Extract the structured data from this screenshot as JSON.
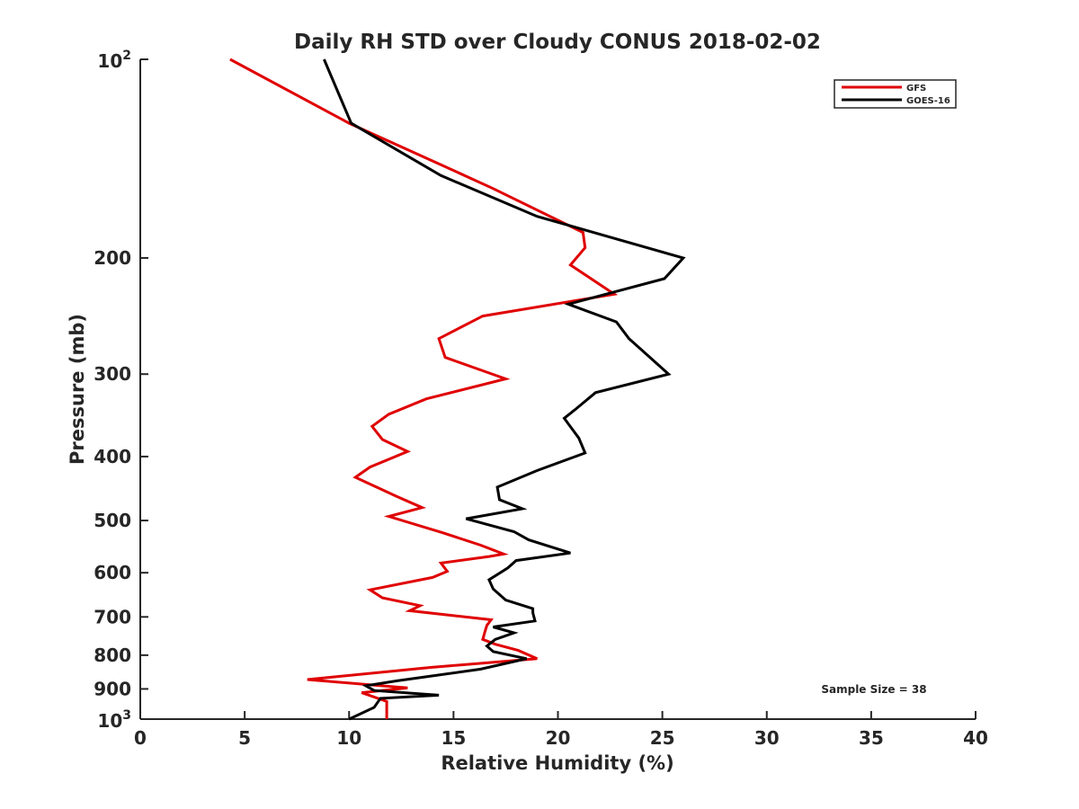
{
  "chart_data": {
    "type": "line",
    "title": "Daily RH STD over Cloudy CONUS 2018-02-02",
    "xlabel": "Relative Humidity (%)",
    "ylabel": "Pressure (mb)",
    "xlim": [
      0,
      40
    ],
    "ylim": [
      100,
      1000
    ],
    "y_scale": "log",
    "y_reversed": true,
    "grid": false,
    "legend_position": "top-right",
    "x_ticks": [
      0,
      5,
      10,
      15,
      20,
      25,
      30,
      35,
      40
    ],
    "x_tick_labels": [
      "0",
      "5",
      "10",
      "15",
      "20",
      "25",
      "30",
      "35",
      "40"
    ],
    "y_ticks": [
      {
        "value": 100,
        "base": "10",
        "exp": "2"
      },
      {
        "value": 200,
        "label": "200"
      },
      {
        "value": 300,
        "label": "300"
      },
      {
        "value": 400,
        "label": "400"
      },
      {
        "value": 500,
        "label": "500"
      },
      {
        "value": 600,
        "label": "600"
      },
      {
        "value": 700,
        "label": "700"
      },
      {
        "value": 800,
        "label": "800"
      },
      {
        "value": 900,
        "label": "900"
      },
      {
        "value": 1000,
        "base": "10",
        "exp": "3"
      }
    ],
    "annotation": "Sample Size = 38",
    "series": [
      {
        "name": "GFS",
        "color": "#e00000",
        "points": [
          [
            4.3,
            100
          ],
          [
            10.0,
            125
          ],
          [
            14.5,
            145
          ],
          [
            16.9,
            157
          ],
          [
            21.2,
            183
          ],
          [
            21.3,
            193
          ],
          [
            20.6,
            205
          ],
          [
            22.7,
            227
          ],
          [
            16.4,
            245
          ],
          [
            14.3,
            265
          ],
          [
            14.6,
            283
          ],
          [
            17.5,
            305
          ],
          [
            13.7,
            327
          ],
          [
            11.9,
            345
          ],
          [
            11.1,
            360
          ],
          [
            11.6,
            377
          ],
          [
            12.8,
            393
          ],
          [
            11.0,
            415
          ],
          [
            10.3,
            430
          ],
          [
            12.3,
            460
          ],
          [
            13.5,
            478
          ],
          [
            11.9,
            493
          ],
          [
            14.5,
            522
          ],
          [
            16.3,
            545
          ],
          [
            17.4,
            562
          ],
          [
            16.7,
            567
          ],
          [
            14.4,
            580
          ],
          [
            14.7,
            597
          ],
          [
            14.0,
            610
          ],
          [
            11.0,
            637
          ],
          [
            11.6,
            655
          ],
          [
            13.4,
            673
          ],
          [
            12.9,
            685
          ],
          [
            16.8,
            707
          ],
          [
            16.6,
            721
          ],
          [
            16.5,
            738
          ],
          [
            16.4,
            757
          ],
          [
            17.0,
            770
          ],
          [
            18.1,
            787
          ],
          [
            19.0,
            810
          ],
          [
            13.9,
            835
          ],
          [
            8.0,
            871
          ],
          [
            12.8,
            897
          ],
          [
            10.6,
            912
          ],
          [
            11.8,
            940
          ],
          [
            11.8,
            1000
          ]
        ]
      },
      {
        "name": "GOES-16",
        "color": "#000000",
        "points": [
          [
            8.8,
            100
          ],
          [
            10.1,
            125
          ],
          [
            14.4,
            150
          ],
          [
            19.0,
            173
          ],
          [
            26.0,
            200
          ],
          [
            25.1,
            215
          ],
          [
            20.5,
            235
          ],
          [
            22.8,
            250
          ],
          [
            23.4,
            265
          ],
          [
            25.3,
            300
          ],
          [
            21.8,
            320
          ],
          [
            20.8,
            340
          ],
          [
            20.3,
            350
          ],
          [
            21.0,
            375
          ],
          [
            21.3,
            395
          ],
          [
            19.0,
            420
          ],
          [
            17.1,
            445
          ],
          [
            17.2,
            465
          ],
          [
            18.3,
            480
          ],
          [
            15.6,
            497
          ],
          [
            17.9,
            520
          ],
          [
            18.6,
            535
          ],
          [
            20.6,
            560
          ],
          [
            18.0,
            575
          ],
          [
            17.6,
            590
          ],
          [
            16.7,
            615
          ],
          [
            16.9,
            635
          ],
          [
            17.5,
            660
          ],
          [
            18.8,
            680
          ],
          [
            18.8,
            690
          ],
          [
            18.9,
            710
          ],
          [
            16.9,
            725
          ],
          [
            17.9,
            740
          ],
          [
            17.0,
            757
          ],
          [
            16.6,
            775
          ],
          [
            16.9,
            790
          ],
          [
            18.5,
            810
          ],
          [
            16.3,
            840
          ],
          [
            12.3,
            875
          ],
          [
            10.8,
            890
          ],
          [
            11.2,
            905
          ],
          [
            14.3,
            920
          ],
          [
            11.5,
            930
          ],
          [
            11.2,
            960
          ],
          [
            10.0,
            1000
          ]
        ]
      }
    ]
  }
}
